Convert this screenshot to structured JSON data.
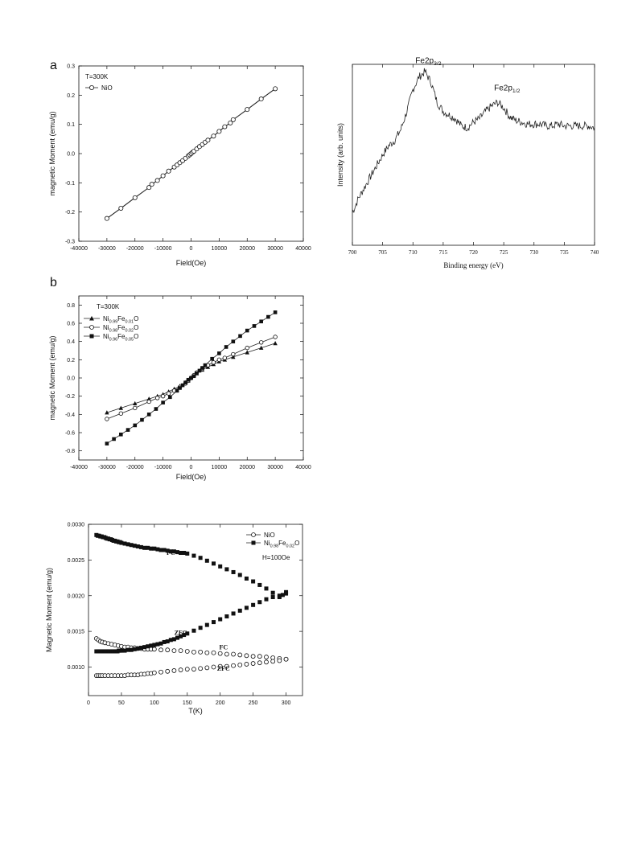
{
  "figure": {
    "panel_a_label": "a",
    "panel_b_label": "b"
  },
  "chart_data": [
    {
      "id": "nio_mh",
      "type": "line",
      "xlabel": "Field(Oe)",
      "ylabel": "magnetic Moment (emu/g)",
      "xlim": [
        -40000,
        40000
      ],
      "ylim": [
        -0.3,
        0.3
      ],
      "xticks": [
        -40000,
        -30000,
        -20000,
        -10000,
        0,
        10000,
        20000,
        30000,
        40000
      ],
      "yticks": [
        -0.3,
        -0.2,
        -0.1,
        0.0,
        0.1,
        0.2,
        0.3
      ],
      "legend": {
        "placement": "top-left",
        "header": "T=300K"
      },
      "series": [
        {
          "name": "NiO",
          "marker": "open-circle",
          "x": [
            -30000,
            -25000,
            -20000,
            -15000,
            -14000,
            -12000,
            -10000,
            -8000,
            -6000,
            -5000,
            -4000,
            -3000,
            -2000,
            -1000,
            -500,
            0,
            500,
            1000,
            2000,
            3000,
            4000,
            5000,
            6000,
            8000,
            10000,
            12000,
            14000,
            15000,
            20000,
            25000,
            30000
          ],
          "y": [
            -0.222,
            -0.187,
            -0.151,
            -0.116,
            -0.105,
            -0.092,
            -0.076,
            -0.06,
            -0.046,
            -0.039,
            -0.031,
            -0.024,
            -0.016,
            -0.008,
            -0.004,
            0.0,
            0.004,
            0.008,
            0.016,
            0.024,
            0.031,
            0.039,
            0.046,
            0.06,
            0.076,
            0.092,
            0.105,
            0.116,
            0.151,
            0.187,
            0.222
          ]
        }
      ]
    },
    {
      "id": "xps",
      "type": "line",
      "xlabel": "Binding energy (eV)",
      "ylabel": "Intensity (arb. units)",
      "xlim": [
        700,
        740
      ],
      "ylim": [
        0,
        1
      ],
      "xticks": [
        700,
        705,
        710,
        715,
        720,
        725,
        730,
        735,
        740
      ],
      "yticks": [],
      "annotations": [
        {
          "text": "Fe2p",
          "sub": "3/2",
          "x": 712,
          "y": 0.98
        },
        {
          "text": "Fe2p",
          "sub": "1/2",
          "x": 725,
          "y": 0.83
        }
      ],
      "series": [
        {
          "name": "",
          "x": [
            700,
            701,
            702,
            703,
            704,
            705,
            706,
            707,
            708,
            709,
            710,
            711,
            712,
            713,
            714,
            715,
            716,
            717,
            718,
            719,
            720,
            721,
            722,
            723,
            724,
            725,
            726,
            727,
            728,
            729,
            730,
            731,
            732,
            733,
            734,
            735,
            736,
            737,
            738,
            739,
            740
          ],
          "y": [
            0.18,
            0.26,
            0.32,
            0.38,
            0.44,
            0.5,
            0.55,
            0.58,
            0.64,
            0.74,
            0.86,
            0.93,
            0.96,
            0.9,
            0.79,
            0.74,
            0.72,
            0.7,
            0.66,
            0.65,
            0.68,
            0.7,
            0.74,
            0.77,
            0.79,
            0.76,
            0.71,
            0.69,
            0.68,
            0.67,
            0.67,
            0.67,
            0.66,
            0.66,
            0.67,
            0.66,
            0.66,
            0.66,
            0.66,
            0.66,
            0.65
          ]
        }
      ]
    },
    {
      "id": "fe_mh",
      "type": "line",
      "xlabel": "Field(Oe)",
      "ylabel": "magnetic Moment (emu/g)",
      "xlim": [
        -40000,
        40000
      ],
      "ylim": [
        -0.9,
        0.9
      ],
      "xticks": [
        -40000,
        -30000,
        -20000,
        -10000,
        0,
        10000,
        20000,
        30000,
        40000
      ],
      "yticks": [
        -0.8,
        -0.6,
        -0.4,
        -0.2,
        0.0,
        0.2,
        0.4,
        0.6,
        0.8
      ],
      "legend": {
        "placement": "top-left",
        "header": "T=300K"
      },
      "series": [
        {
          "name": "Ni0.99Fe0.01O",
          "name_parts": [
            "Ni",
            "0.99",
            "Fe",
            "0.01",
            "O"
          ],
          "marker": "filled-triangle",
          "x": [
            -30000,
            -25000,
            -20000,
            -15000,
            -12000,
            -10000,
            -8000,
            -6000,
            -4000,
            -2000,
            -1000,
            0,
            1000,
            2000,
            4000,
            6000,
            8000,
            10000,
            12000,
            15000,
            20000,
            25000,
            30000
          ],
          "y": [
            -0.38,
            -0.33,
            -0.28,
            -0.23,
            -0.2,
            -0.18,
            -0.15,
            -0.12,
            -0.09,
            -0.05,
            -0.03,
            0.0,
            0.03,
            0.05,
            0.09,
            0.12,
            0.15,
            0.18,
            0.2,
            0.23,
            0.28,
            0.33,
            0.38
          ]
        },
        {
          "name": "Ni0.98Fe0.02O",
          "name_parts": [
            "Ni",
            "0.98",
            "Fe",
            "0.02",
            "O"
          ],
          "marker": "open-circle",
          "x": [
            -30000,
            -25000,
            -20000,
            -15000,
            -12000,
            -10000,
            -8000,
            -6000,
            -4000,
            -2000,
            -1000,
            0,
            1000,
            2000,
            4000,
            6000,
            8000,
            10000,
            12000,
            15000,
            20000,
            25000,
            30000
          ],
          "y": [
            -0.45,
            -0.39,
            -0.33,
            -0.26,
            -0.22,
            -0.2,
            -0.17,
            -0.14,
            -0.1,
            -0.06,
            -0.03,
            0.0,
            0.03,
            0.06,
            0.1,
            0.14,
            0.17,
            0.2,
            0.22,
            0.26,
            0.33,
            0.39,
            0.45
          ]
        },
        {
          "name": "Ni0.96Fe0.05O",
          "name_parts": [
            "Ni",
            "0.96",
            "Fe",
            "0.05",
            "O"
          ],
          "marker": "filled-square",
          "x": [
            -30000,
            -27500,
            -25000,
            -22500,
            -20000,
            -17500,
            -15000,
            -12500,
            -10000,
            -7500,
            -5000,
            -4000,
            -3000,
            -2000,
            -1000,
            0,
            1000,
            2000,
            3000,
            4000,
            5000,
            7500,
            10000,
            12500,
            15000,
            17500,
            20000,
            22500,
            25000,
            27500,
            30000
          ],
          "y": [
            -0.72,
            -0.67,
            -0.62,
            -0.57,
            -0.52,
            -0.46,
            -0.4,
            -0.34,
            -0.27,
            -0.21,
            -0.14,
            -0.11,
            -0.08,
            -0.05,
            -0.02,
            0.0,
            0.02,
            0.05,
            0.08,
            0.11,
            0.14,
            0.21,
            0.27,
            0.34,
            0.4,
            0.46,
            0.52,
            0.57,
            0.62,
            0.67,
            0.72
          ]
        }
      ]
    },
    {
      "id": "mt",
      "type": "scatter",
      "xlabel": "T(K)",
      "ylabel": "Magnetic Moment (emu/g)",
      "xlim": [
        0,
        325
      ],
      "ylim": [
        0.0006,
        0.003
      ],
      "xticks": [
        0,
        50,
        100,
        150,
        200,
        250,
        300
      ],
      "yticks": [
        0.001,
        0.0015,
        0.002,
        0.0025,
        0.003
      ],
      "ytick_labels": [
        "0.0010",
        "0.0015",
        "0.0020",
        "0.0025",
        "0.0030"
      ],
      "legend": {
        "placement": "top-right",
        "footer": "H=100Oe"
      },
      "annotations": [
        {
          "text": "FC",
          "x": 125,
          "y": 0.00257,
          "font": "serif"
        },
        {
          "text": "ZFC",
          "x": 140,
          "y": 0.00145,
          "font": "serif"
        },
        {
          "text": "FC",
          "x": 205,
          "y": 0.00125,
          "font": "serif"
        },
        {
          "text": "ZFC",
          "x": 205,
          "y": 0.00095,
          "font": "serif"
        }
      ],
      "series": [
        {
          "name": "NiO",
          "marker": "open-circle",
          "segments": [
            {
              "label": "FC",
              "x": [
                12,
                15,
                18,
                21,
                25,
                30,
                35,
                40,
                45,
                50,
                55,
                60,
                65,
                70,
                75,
                80,
                85,
                90,
                95,
                100,
                110,
                120,
                130,
                140,
                150,
                160,
                170,
                180,
                190,
                200,
                210,
                220,
                230,
                240,
                250,
                260,
                270,
                280,
                290,
                300
              ],
              "y": [
                0.0014,
                0.00138,
                0.00136,
                0.00135,
                0.00134,
                0.00133,
                0.00132,
                0.00131,
                0.0013,
                0.00129,
                0.00128,
                0.00128,
                0.00127,
                0.00127,
                0.00126,
                0.00126,
                0.00125,
                0.00125,
                0.00125,
                0.00125,
                0.00124,
                0.00124,
                0.00123,
                0.00123,
                0.00122,
                0.00121,
                0.00121,
                0.0012,
                0.0012,
                0.00119,
                0.00118,
                0.00118,
                0.00117,
                0.00116,
                0.00115,
                0.00115,
                0.00114,
                0.00113,
                0.00112,
                0.00111
              ]
            },
            {
              "label": "ZFC",
              "x": [
                12,
                15,
                18,
                21,
                25,
                30,
                35,
                40,
                45,
                50,
                55,
                60,
                65,
                70,
                75,
                80,
                85,
                90,
                95,
                100,
                110,
                120,
                130,
                140,
                150,
                160,
                170,
                180,
                190,
                200,
                210,
                220,
                230,
                240,
                250,
                260,
                270,
                280,
                290,
                300
              ],
              "y": [
                0.00088,
                0.00088,
                0.00088,
                0.00088,
                0.00088,
                0.00088,
                0.00088,
                0.00088,
                0.00088,
                0.00088,
                0.00088,
                0.00089,
                0.00089,
                0.00089,
                0.00089,
                0.0009,
                0.0009,
                0.00091,
                0.00091,
                0.00092,
                0.00093,
                0.00094,
                0.00095,
                0.00096,
                0.00097,
                0.00097,
                0.00098,
                0.00099,
                0.001,
                0.00101,
                0.00101,
                0.00102,
                0.00103,
                0.00104,
                0.00105,
                0.00106,
                0.00107,
                0.00108,
                0.00109,
                0.00111
              ]
            }
          ]
        },
        {
          "name": "Ni0.98Fe0.02O",
          "name_parts": [
            "Ni",
            "0.98",
            "Fe",
            "0.02",
            "O"
          ],
          "marker": "filled-square",
          "segments": [
            {
              "label": "FC",
              "x": [
                12,
                14,
                16,
                18,
                20,
                22,
                24,
                26,
                28,
                30,
                32,
                34,
                36,
                38,
                40,
                42,
                44,
                46,
                48,
                50,
                55,
                60,
                65,
                70,
                75,
                80,
                85,
                90,
                95,
                100,
                105,
                110,
                115,
                120,
                125,
                130,
                135,
                140,
                145,
                150,
                160,
                170,
                180,
                190,
                200,
                210,
                220,
                230,
                240,
                250,
                260,
                270,
                280,
                290,
                295,
                300
              ],
              "y": [
                0.00285,
                0.00284,
                0.00284,
                0.00283,
                0.00283,
                0.00282,
                0.00282,
                0.00281,
                0.0028,
                0.0028,
                0.00279,
                0.00279,
                0.00278,
                0.00277,
                0.00277,
                0.00276,
                0.00276,
                0.00275,
                0.00275,
                0.00274,
                0.00273,
                0.00272,
                0.00271,
                0.0027,
                0.00269,
                0.00268,
                0.00267,
                0.00267,
                0.00266,
                0.00266,
                0.00265,
                0.00264,
                0.00264,
                0.00263,
                0.00262,
                0.00262,
                0.00261,
                0.0026,
                0.0026,
                0.00259,
                0.00256,
                0.00253,
                0.00249,
                0.00245,
                0.00241,
                0.00237,
                0.00233,
                0.00229,
                0.00224,
                0.0022,
                0.00215,
                0.0021,
                0.00204,
                0.00198,
                0.00201,
                0.00205
              ]
            },
            {
              "label": "ZFC",
              "x": [
                12,
                14,
                16,
                18,
                20,
                22,
                24,
                26,
                28,
                30,
                32,
                34,
                36,
                38,
                40,
                42,
                44,
                46,
                48,
                50,
                55,
                60,
                65,
                70,
                75,
                80,
                85,
                90,
                95,
                100,
                105,
                110,
                115,
                120,
                125,
                130,
                135,
                140,
                145,
                150,
                160,
                170,
                180,
                190,
                200,
                210,
                220,
                230,
                240,
                250,
                260,
                270,
                280,
                290,
                300
              ],
              "y": [
                0.00122,
                0.00122,
                0.00122,
                0.00122,
                0.00122,
                0.00122,
                0.00122,
                0.00122,
                0.00122,
                0.00122,
                0.00122,
                0.00122,
                0.00122,
                0.00122,
                0.00122,
                0.00122,
                0.00122,
                0.00123,
                0.00123,
                0.00123,
                0.00123,
                0.00124,
                0.00124,
                0.00125,
                0.00126,
                0.00127,
                0.00128,
                0.00129,
                0.0013,
                0.00131,
                0.00132,
                0.00133,
                0.00135,
                0.00136,
                0.00138,
                0.00139,
                0.00141,
                0.00143,
                0.00145,
                0.00147,
                0.00151,
                0.00155,
                0.00159,
                0.00163,
                0.00167,
                0.00171,
                0.00175,
                0.00179,
                0.00183,
                0.00187,
                0.00191,
                0.00195,
                0.00198,
                0.002,
                0.00203
              ]
            }
          ]
        }
      ]
    }
  ]
}
